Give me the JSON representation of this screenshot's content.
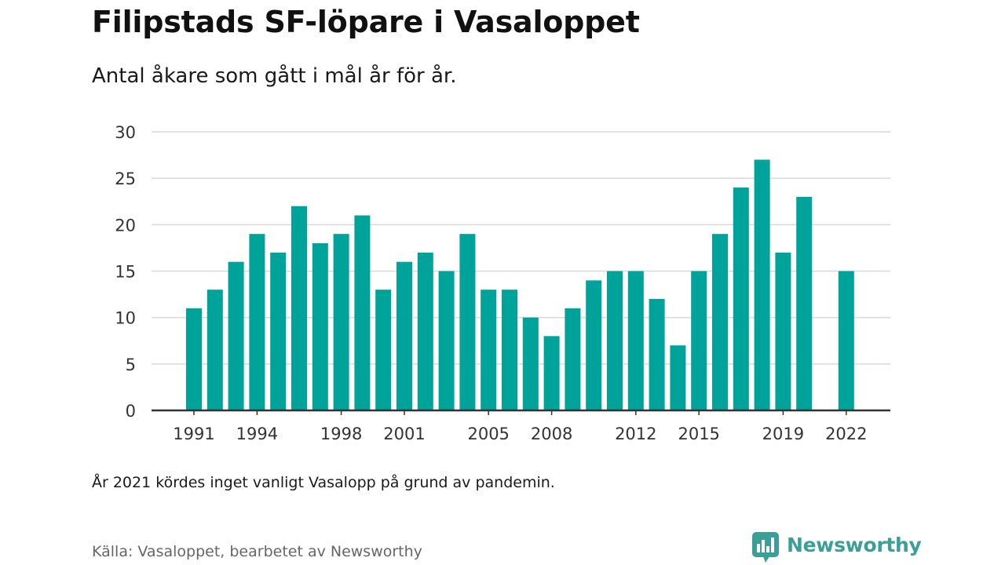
{
  "header": {
    "title": "Filipstads SF-löpare i Vasaloppet",
    "subtitle": "Antal åkare som gått i mål år för år."
  },
  "footer": {
    "note": "År 2021 kördes inget vanligt Vasalopp på grund av pandemin.",
    "source": "Källa: Vasaloppet, bearbetet av Newsworthy",
    "brand": "Newsworthy"
  },
  "colors": {
    "bar": "#00a39a",
    "grid": "#d9d9d9",
    "axis": "#333333",
    "brand": "#3a9f97"
  },
  "icons": {
    "logo": "newsworthy-logo-icon"
  },
  "chart_data": {
    "type": "bar",
    "categories": [
      1991,
      1992,
      1993,
      1994,
      1995,
      1996,
      1997,
      1998,
      1999,
      2000,
      2001,
      2002,
      2003,
      2004,
      2005,
      2006,
      2007,
      2008,
      2009,
      2010,
      2011,
      2012,
      2013,
      2014,
      2015,
      2016,
      2017,
      2018,
      2019,
      2020,
      2021,
      2022
    ],
    "values": [
      11,
      13,
      16,
      19,
      17,
      22,
      18,
      19,
      21,
      13,
      16,
      17,
      15,
      19,
      13,
      13,
      10,
      8,
      11,
      14,
      15,
      15,
      12,
      7,
      15,
      19,
      24,
      27,
      17,
      23,
      null,
      15
    ],
    "x_tick_labels": [
      "1991",
      "1994",
      "1998",
      "2001",
      "2005",
      "2008",
      "2012",
      "2015",
      "2019",
      "2022"
    ],
    "y_ticks": [
      0,
      5,
      10,
      15,
      20,
      25,
      30
    ],
    "ylim": [
      0,
      30
    ],
    "grid": true,
    "legend": "none"
  }
}
